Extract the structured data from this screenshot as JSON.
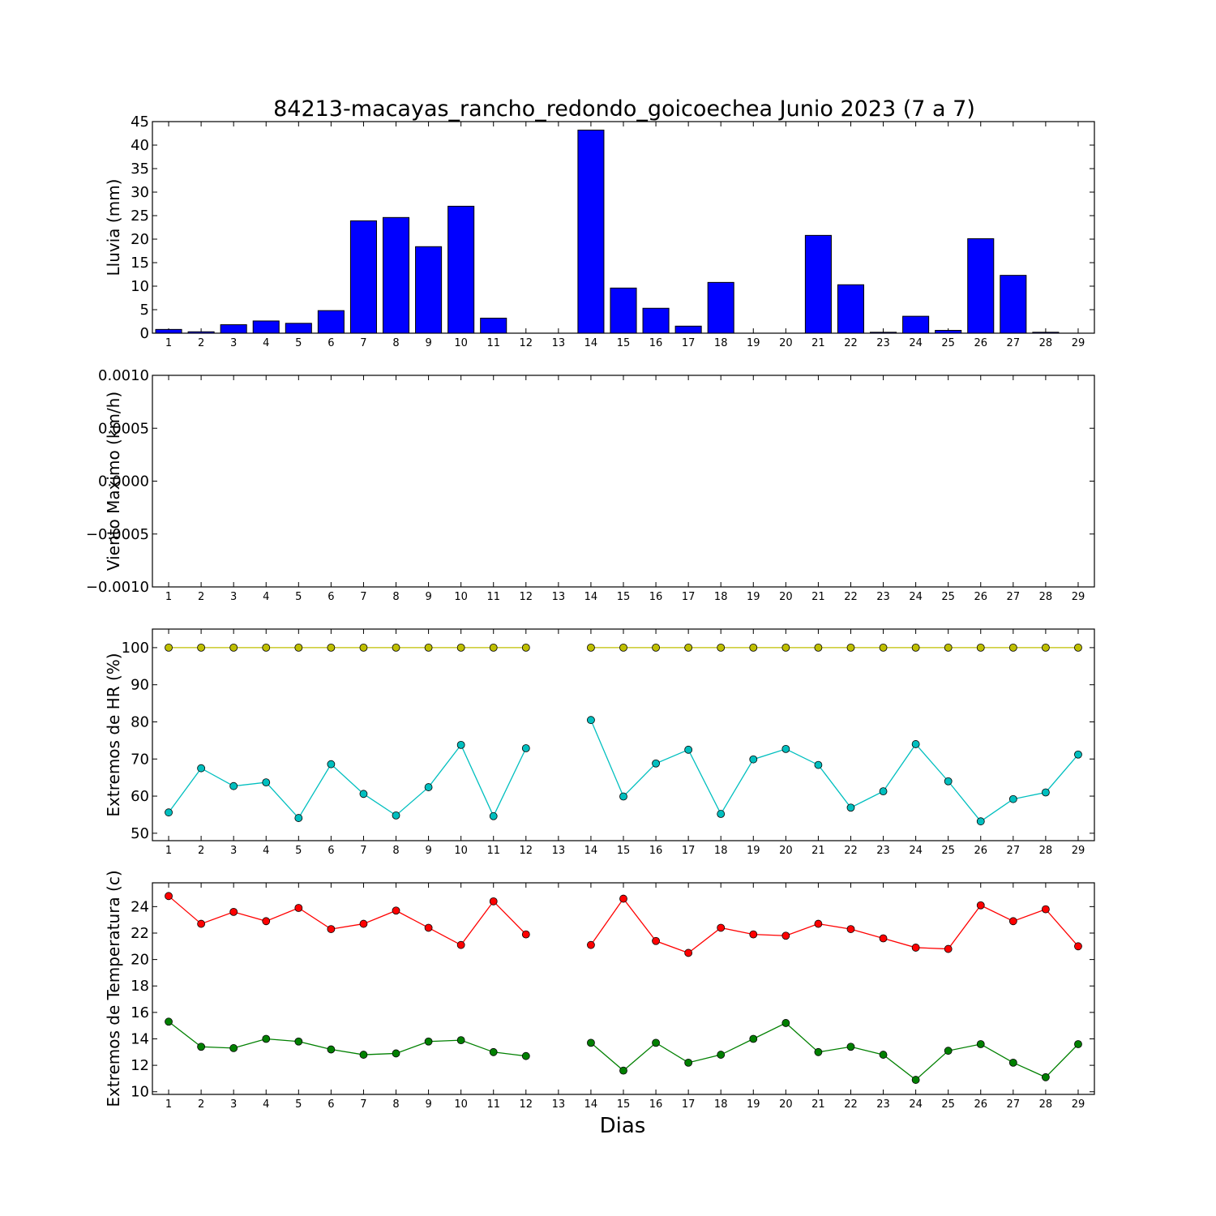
{
  "figure": {
    "title": "84213-macayas_rancho_redondo_goicoechea Junio 2023  (7 a 7)",
    "xlabel": "Dias"
  },
  "chart_data": [
    {
      "type": "bar",
      "ylabel": "Lluvia (mm)",
      "x": [
        1,
        2,
        3,
        4,
        5,
        6,
        7,
        8,
        9,
        10,
        11,
        12,
        13,
        14,
        15,
        16,
        17,
        18,
        19,
        20,
        21,
        22,
        23,
        24,
        25,
        26,
        27,
        28,
        29
      ],
      "xlim": [
        0.5,
        29.5
      ],
      "ylim": [
        0,
        45
      ],
      "yticks": [
        0,
        5,
        10,
        15,
        20,
        25,
        30,
        35,
        40,
        45
      ],
      "ytick_labels": [
        "0",
        "5",
        "10",
        "15",
        "20",
        "25",
        "30",
        "35",
        "40",
        "45"
      ],
      "colors": {
        "bar": "#0000ff"
      },
      "series": [
        {
          "values": [
            0.8,
            0.3,
            1.8,
            2.6,
            2.1,
            4.8,
            23.9,
            24.6,
            18.4,
            27.0,
            3.2,
            0.0,
            null,
            43.2,
            9.6,
            5.3,
            1.5,
            10.8,
            0.0,
            0.0,
            20.8,
            10.3,
            0.2,
            3.6,
            0.6,
            20.1,
            12.3,
            0.2,
            null
          ]
        }
      ]
    },
    {
      "type": "line",
      "ylabel": "Viento Maximo (km/h)",
      "x": [
        1,
        2,
        3,
        4,
        5,
        6,
        7,
        8,
        9,
        10,
        11,
        12,
        13,
        14,
        15,
        16,
        17,
        18,
        19,
        20,
        21,
        22,
        23,
        24,
        25,
        26,
        27,
        28,
        29
      ],
      "xlim": [
        0.5,
        29.5
      ],
      "ylim": [
        -0.001,
        0.001
      ],
      "yticks": [
        -0.001,
        -0.0005,
        0,
        0.0005,
        0.001
      ],
      "ytick_labels": [
        "−0.0010",
        "−0.0005",
        "0.0000",
        "0.0005",
        "0.0010"
      ],
      "series": []
    },
    {
      "type": "line",
      "ylabel": "Extremos de HR (%)",
      "x": [
        1,
        2,
        3,
        4,
        5,
        6,
        7,
        8,
        9,
        10,
        11,
        12,
        13,
        14,
        15,
        16,
        17,
        18,
        19,
        20,
        21,
        22,
        23,
        24,
        25,
        26,
        27,
        28,
        29
      ],
      "xlim": [
        0.5,
        29.5
      ],
      "ylim": [
        48,
        105
      ],
      "yticks": [
        50,
        60,
        70,
        80,
        90,
        100
      ],
      "ytick_labels": [
        "50",
        "60",
        "70",
        "80",
        "90",
        "100"
      ],
      "series": [
        {
          "color": "#bfbf00",
          "values": [
            100,
            100,
            100,
            100,
            100,
            100,
            100,
            100,
            100,
            100,
            100,
            100,
            null,
            100,
            100,
            100,
            100,
            100,
            100,
            100,
            100,
            100,
            100,
            100,
            100,
            100,
            100,
            100,
            100
          ]
        },
        {
          "color": "#00bfbf",
          "values": [
            55.6,
            67.5,
            62.7,
            63.7,
            54.1,
            68.6,
            60.6,
            54.8,
            62.4,
            73.8,
            54.6,
            72.9,
            null,
            80.5,
            59.9,
            68.8,
            72.5,
            55.2,
            69.9,
            72.7,
            68.4,
            56.9,
            61.3,
            74.0,
            64.0,
            53.2,
            59.2,
            61.0,
            71.2
          ]
        }
      ]
    },
    {
      "type": "line",
      "ylabel": "Extremos de Temperatura (c)",
      "x": [
        1,
        2,
        3,
        4,
        5,
        6,
        7,
        8,
        9,
        10,
        11,
        12,
        13,
        14,
        15,
        16,
        17,
        18,
        19,
        20,
        21,
        22,
        23,
        24,
        25,
        26,
        27,
        28,
        29
      ],
      "xlim": [
        0.5,
        29.5
      ],
      "ylim": [
        9.8,
        25.8
      ],
      "yticks": [
        10,
        12,
        14,
        16,
        18,
        20,
        22,
        24
      ],
      "ytick_labels": [
        "10",
        "12",
        "14",
        "16",
        "18",
        "20",
        "22",
        "24"
      ],
      "series": [
        {
          "color": "#ff0000",
          "values": [
            24.8,
            22.7,
            23.6,
            22.9,
            23.9,
            22.3,
            22.7,
            23.7,
            22.4,
            21.1,
            24.4,
            21.9,
            null,
            21.1,
            24.6,
            21.4,
            20.5,
            22.4,
            21.9,
            21.8,
            22.7,
            22.3,
            21.6,
            20.9,
            20.8,
            24.1,
            22.9,
            23.8,
            21.0
          ]
        },
        {
          "color": "#008000",
          "values": [
            15.3,
            13.4,
            13.3,
            14.0,
            13.8,
            13.2,
            12.8,
            12.9,
            13.8,
            13.9,
            13.0,
            12.7,
            null,
            13.7,
            11.6,
            13.7,
            12.2,
            12.8,
            14.0,
            15.2,
            13.0,
            13.4,
            12.8,
            10.9,
            13.1,
            13.6,
            12.2,
            11.1,
            13.6
          ]
        }
      ]
    }
  ]
}
